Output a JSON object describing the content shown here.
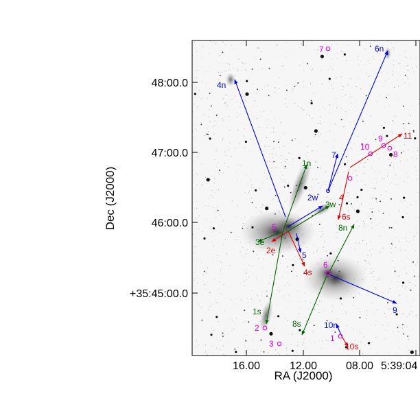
{
  "axes": {
    "xlabel": "RA (J2000)",
    "ylabel": "Dec (J2000)",
    "x_ticks": [
      "16.00",
      "12.00",
      "08.00",
      "5:39:04"
    ],
    "y_ticks": [
      "48:00.0",
      "47:00.0",
      "46:00.0",
      "+35:45:00.0"
    ]
  },
  "colors": {
    "blue": "#0000e0",
    "red": "#e00000",
    "green": "#006400",
    "magenta": "#e000e0"
  },
  "labels": {
    "blue": [
      "4n",
      "6n",
      "7",
      "2w",
      "5",
      "9",
      "10n"
    ],
    "red": [
      "11",
      "4",
      "6s",
      "2e",
      "4s",
      "10s"
    ],
    "green": [
      "1n",
      "3w",
      "8n",
      "3e",
      "1s",
      "8s"
    ],
    "magenta": [
      "7",
      "10",
      "9",
      "8",
      "5",
      "6",
      "2",
      "3",
      "1"
    ]
  }
}
